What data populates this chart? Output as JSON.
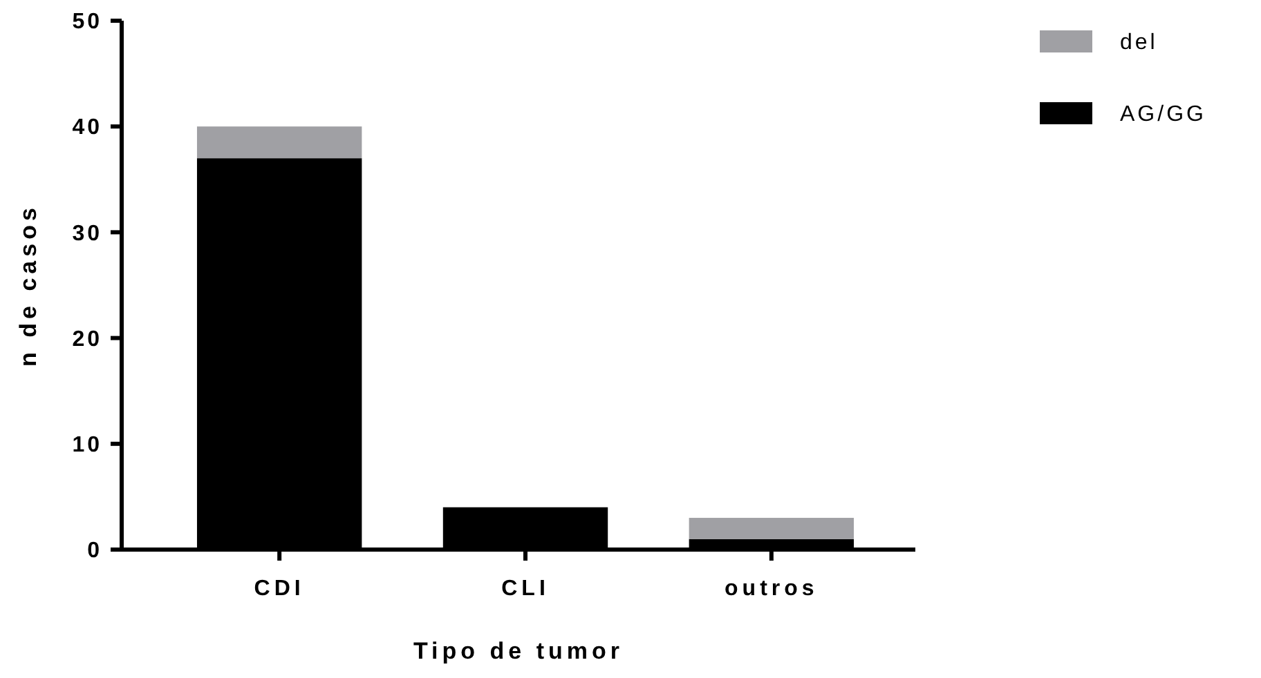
{
  "chart_data": {
    "type": "bar",
    "stacked": true,
    "xlabel": "Tipo de tumor",
    "ylabel": "n de casos",
    "categories": [
      "CDI",
      "CLI",
      "outros"
    ],
    "ylim": [
      0,
      50
    ],
    "yticks": [
      0,
      10,
      20,
      30,
      40,
      50
    ],
    "legend": "right",
    "grid": false,
    "series": [
      {
        "name": "AG/GG",
        "color": "#000000",
        "values": [
          37,
          4,
          1
        ]
      },
      {
        "name": "del",
        "color": "#a0a0a4",
        "values": [
          3,
          0,
          2
        ]
      }
    ]
  }
}
